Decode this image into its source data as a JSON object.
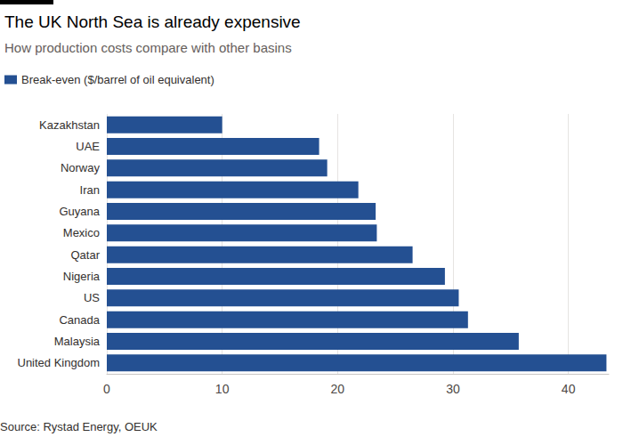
{
  "chart_data": {
    "type": "bar",
    "title": "The UK North Sea is already expensive",
    "subtitle": "How production costs compare with other basins",
    "source": "Source: Rystad Energy, OEUK",
    "orientation": "horizontal",
    "categories": [
      "Kazakhstan",
      "UAE",
      "Norway",
      "Iran",
      "Guyana",
      "Mexico",
      "Qatar",
      "Nigeria",
      "US",
      "Canada",
      "Malaysia",
      "United Kingdom"
    ],
    "series": [
      {
        "name": "Break-even ($/barrel of oil equivalent)",
        "color": "#245092",
        "values": [
          10,
          18.4,
          19.1,
          21.8,
          23.3,
          23.4,
          26.5,
          29.3,
          30.5,
          31.3,
          35.7,
          43.3
        ]
      }
    ],
    "xlim": [
      0,
      43.5
    ],
    "xticks": [
      0,
      10,
      20,
      30,
      40
    ],
    "grid": true,
    "legend": "top-left"
  }
}
